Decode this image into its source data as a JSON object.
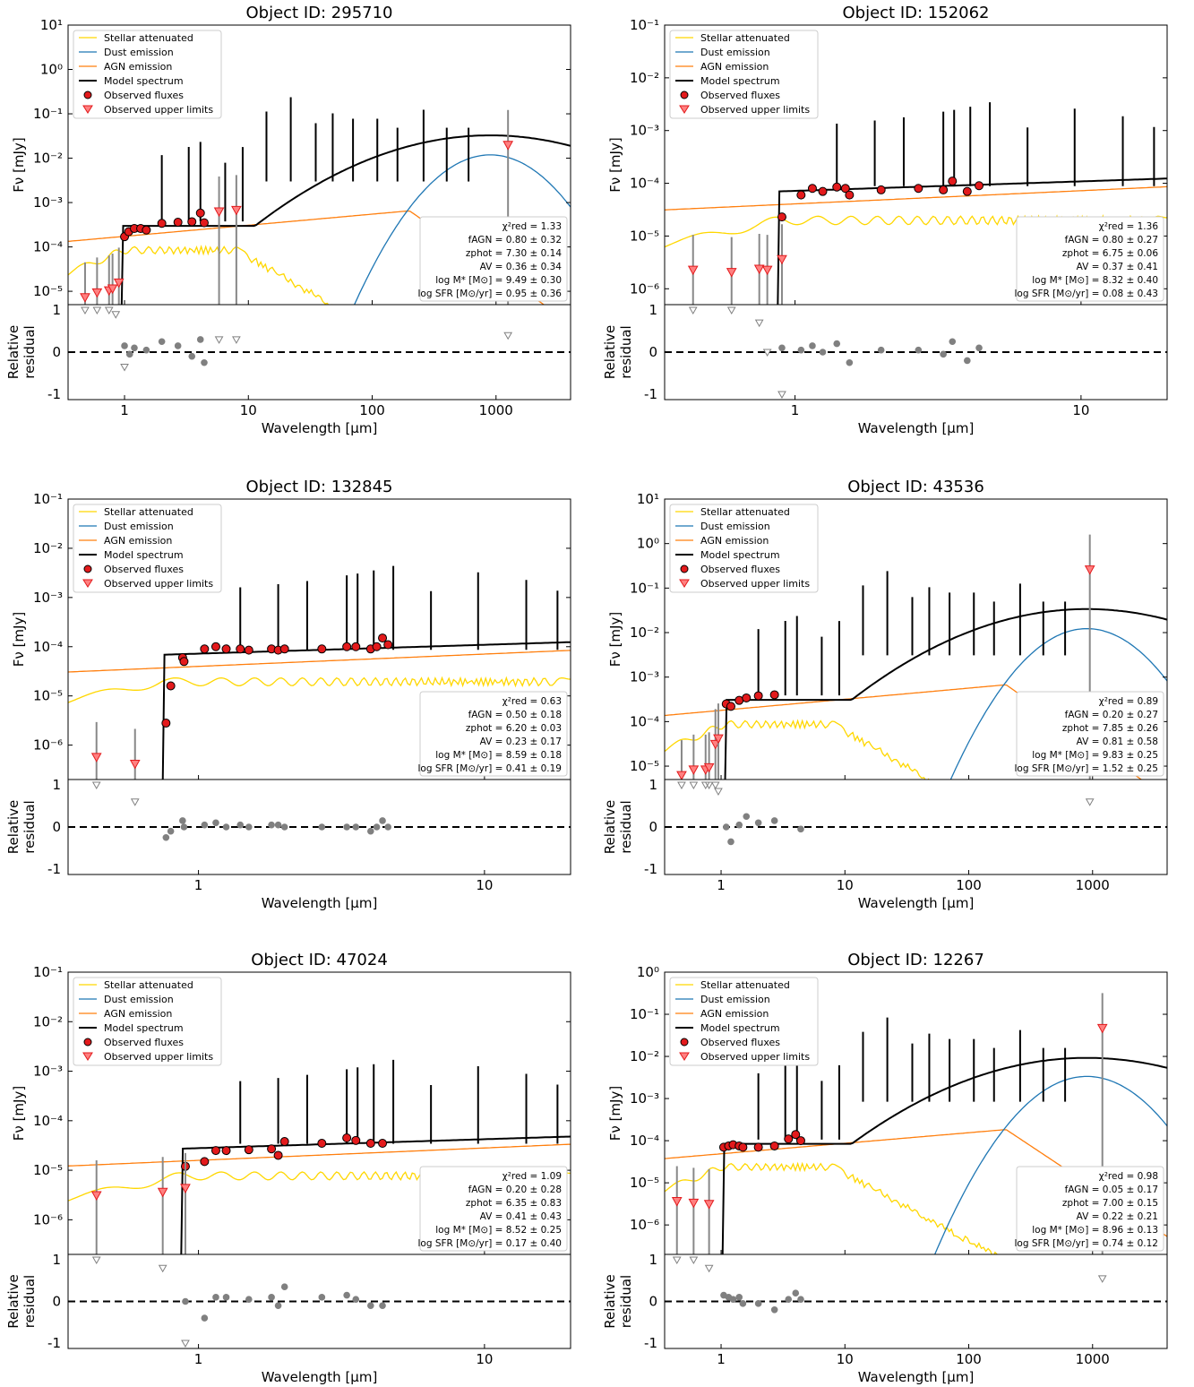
{
  "figure": {
    "legend": [
      "Stellar attenuated",
      "Dust emission",
      "AGN emission",
      "Model spectrum",
      "Observed fluxes",
      "Observed upper limits"
    ],
    "ylabel": "Fν [mJy]",
    "residual_ylabel": [
      "Relative",
      "residual"
    ],
    "xlabel": "Wavelength [μm]"
  },
  "colors": {
    "stellar": "#ffd700",
    "dust": "#1f77b4",
    "agn": "#ff7f0e",
    "model": "#000000",
    "observed": "#e31a1c",
    "residual": "#808080"
  },
  "chart_data": [
    {
      "type": "line",
      "title": "Object ID: 295710",
      "xscale": "log",
      "yscale": "log",
      "xlim": [
        0.35,
        4000
      ],
      "ylim": [
        5e-06,
        10
      ],
      "xticks": [
        "1",
        "10",
        "100",
        "1000"
      ],
      "yticks": [
        "10⁻⁵",
        "10⁻⁴",
        "10⁻³",
        "10⁻²",
        "10⁻¹",
        "10⁰",
        "10¹"
      ],
      "stats": [
        "χ²red = 1.33",
        "fAGN = 0.80 ± 0.32",
        "zphot = 7.30 ± 0.14",
        "AV = 0.36 ± 0.34",
        "log M* [M⊙] = 9.49 ± 0.30",
        "log SFR [M⊙/yr] = 0.95 ± 0.36"
      ],
      "observed": [
        [
          1.0,
          0.00017
        ],
        [
          1.08,
          0.00022
        ],
        [
          1.2,
          0.00026
        ],
        [
          1.35,
          0.00026
        ],
        [
          1.5,
          0.00024
        ],
        [
          2.0,
          0.00034
        ],
        [
          2.7,
          0.00036
        ],
        [
          3.5,
          0.00037
        ],
        [
          4.1,
          0.00058
        ],
        [
          4.4,
          0.00035
        ]
      ],
      "upper_limits": [
        [
          0.48,
          7e-06
        ],
        [
          0.6,
          9e-06
        ],
        [
          0.75,
          1e-05
        ],
        [
          0.8,
          1.1e-05
        ],
        [
          0.9,
          1.5e-05
        ],
        [
          5.8,
          0.0006
        ],
        [
          8.0,
          0.00065
        ],
        [
          1250,
          0.019
        ]
      ],
      "residual_points": [
        [
          1.0,
          0.15
        ],
        [
          1.1,
          -0.05
        ],
        [
          1.2,
          0.1
        ],
        [
          1.5,
          0.05
        ],
        [
          2.0,
          0.25
        ],
        [
          2.7,
          0.15
        ],
        [
          3.5,
          -0.1
        ],
        [
          4.1,
          0.3
        ],
        [
          4.4,
          -0.25
        ]
      ],
      "residual_limits": [
        [
          0.48,
          1.0
        ],
        [
          0.6,
          1.0
        ],
        [
          0.75,
          1.0
        ],
        [
          0.85,
          0.9
        ],
        [
          1.0,
          -0.35
        ],
        [
          5.8,
          0.3
        ],
        [
          8.0,
          0.3
        ],
        [
          1250,
          0.4
        ]
      ]
    },
    {
      "type": "line",
      "title": "Object ID: 152062",
      "xscale": "log",
      "yscale": "log",
      "xlim": [
        0.35,
        20
      ],
      "ylim": [
        5e-07,
        0.1
      ],
      "xticks": [
        "1",
        "10"
      ],
      "yticks": [
        "10⁻⁶",
        "10⁻⁵",
        "10⁻⁴",
        "10⁻³",
        "10⁻²",
        "10⁻¹"
      ],
      "stats": [
        "χ²red = 1.36",
        "fAGN = 0.80 ± 0.27",
        "zphot = 6.75 ± 0.06",
        "AV = 0.37 ± 0.41",
        "log M* [M⊙] = 8.32 ± 0.40",
        "log SFR [M⊙/yr] = 0.08 ± 0.43"
      ],
      "observed": [
        [
          0.9,
          2.3e-05
        ],
        [
          1.05,
          6e-05
        ],
        [
          1.15,
          8e-05
        ],
        [
          1.25,
          7e-05
        ],
        [
          1.4,
          8.5e-05
        ],
        [
          1.5,
          8e-05
        ],
        [
          1.55,
          6e-05
        ],
        [
          2.0,
          7.5e-05
        ],
        [
          2.7,
          8e-05
        ],
        [
          3.3,
          7.5e-05
        ],
        [
          3.55,
          0.00011
        ],
        [
          4.0,
          7e-05
        ],
        [
          4.4,
          9e-05
        ]
      ],
      "upper_limits": [
        [
          0.44,
          2.2e-06
        ],
        [
          0.6,
          2e-06
        ],
        [
          0.75,
          2.3e-06
        ],
        [
          0.8,
          2.2e-06
        ],
        [
          0.9,
          3.5e-06
        ]
      ],
      "residual_points": [
        [
          0.9,
          0.1
        ],
        [
          1.05,
          0.05
        ],
        [
          1.15,
          0.15
        ],
        [
          1.25,
          0.0
        ],
        [
          1.4,
          0.2
        ],
        [
          1.55,
          -0.25
        ],
        [
          2.0,
          0.05
        ],
        [
          2.7,
          0.05
        ],
        [
          3.3,
          -0.05
        ],
        [
          3.55,
          0.25
        ],
        [
          4.0,
          -0.2
        ],
        [
          4.4,
          0.1
        ]
      ],
      "residual_limits": [
        [
          0.44,
          1.0
        ],
        [
          0.6,
          1.0
        ],
        [
          0.75,
          0.7
        ],
        [
          0.8,
          0.0
        ],
        [
          0.9,
          -1.0
        ]
      ]
    },
    {
      "type": "line",
      "title": "Object ID: 132845",
      "xscale": "log",
      "yscale": "log",
      "xlim": [
        0.35,
        20
      ],
      "ylim": [
        2e-07,
        0.1
      ],
      "xticks": [
        "1",
        "10"
      ],
      "yticks": [
        "10⁻⁶",
        "10⁻⁵",
        "10⁻⁴",
        "10⁻³",
        "10⁻²",
        "10⁻¹"
      ],
      "stats": [
        "χ²red = 0.63",
        "fAGN = 0.50 ± 0.18",
        "zphot = 6.20 ± 0.03",
        "AV = 0.23 ± 0.17",
        "log M* [M⊙] = 8.59 ± 0.18",
        "log SFR [M⊙/yr] = 0.41 ± 0.19"
      ],
      "observed": [
        [
          0.77,
          2.8e-06
        ],
        [
          0.8,
          1.6e-05
        ],
        [
          0.88,
          6e-05
        ],
        [
          0.89,
          5e-05
        ],
        [
          1.05,
          9e-05
        ],
        [
          1.15,
          0.0001
        ],
        [
          1.25,
          9e-05
        ],
        [
          1.4,
          9e-05
        ],
        [
          1.5,
          8.5e-05
        ],
        [
          1.8,
          9e-05
        ],
        [
          1.9,
          8.5e-05
        ],
        [
          2.0,
          9e-05
        ],
        [
          2.7,
          9e-05
        ],
        [
          3.3,
          0.0001
        ],
        [
          3.55,
          0.0001
        ],
        [
          4.0,
          9e-05
        ],
        [
          4.2,
          0.0001
        ],
        [
          4.4,
          0.00015
        ],
        [
          4.6,
          0.00011
        ]
      ],
      "upper_limits": [
        [
          0.44,
          5.5e-07
        ],
        [
          0.6,
          4e-07
        ]
      ],
      "residual_points": [
        [
          0.77,
          -0.25
        ],
        [
          0.8,
          -0.1
        ],
        [
          0.88,
          0.15
        ],
        [
          0.89,
          0.0
        ],
        [
          1.05,
          0.05
        ],
        [
          1.15,
          0.1
        ],
        [
          1.25,
          0.0
        ],
        [
          1.4,
          0.05
        ],
        [
          1.5,
          0.0
        ],
        [
          1.8,
          0.05
        ],
        [
          1.9,
          0.05
        ],
        [
          2.0,
          0.0
        ],
        [
          2.7,
          0.0
        ],
        [
          3.3,
          0.0
        ],
        [
          3.55,
          0.0
        ],
        [
          4.0,
          -0.1
        ],
        [
          4.2,
          0.0
        ],
        [
          4.4,
          0.15
        ],
        [
          4.6,
          0.0
        ]
      ],
      "residual_limits": [
        [
          0.44,
          1.0
        ],
        [
          0.6,
          0.6
        ]
      ]
    },
    {
      "type": "line",
      "title": "Object ID: 43536",
      "xscale": "log",
      "yscale": "log",
      "xlim": [
        0.35,
        4000
      ],
      "ylim": [
        5e-06,
        10
      ],
      "xticks": [
        "1",
        "10",
        "100",
        "1000"
      ],
      "yticks": [
        "10⁻⁵",
        "10⁻⁴",
        "10⁻³",
        "10⁻²",
        "10⁻¹",
        "10⁰",
        "10¹"
      ],
      "stats": [
        "χ²red = 0.89",
        "fAGN = 0.20 ± 0.27",
        "zphot = 7.85 ± 0.26",
        "AV = 0.81 ± 0.58",
        "log M* [M⊙] = 9.83 ± 0.25",
        "log SFR [M⊙/yr] = 1.52 ± 0.25"
      ],
      "observed": [
        [
          1.1,
          0.00025
        ],
        [
          1.2,
          0.00022
        ],
        [
          1.4,
          0.0003
        ],
        [
          1.6,
          0.00034
        ],
        [
          2.0,
          0.00038
        ],
        [
          2.7,
          0.0004
        ]
      ],
      "upper_limits": [
        [
          0.48,
          6e-06
        ],
        [
          0.6,
          8e-06
        ],
        [
          0.75,
          8e-06
        ],
        [
          0.8,
          9e-06
        ],
        [
          0.9,
          3e-05
        ],
        [
          0.95,
          4e-05
        ],
        [
          950,
          0.25
        ]
      ],
      "residual_points": [
        [
          1.1,
          0.0
        ],
        [
          1.2,
          -0.35
        ],
        [
          1.4,
          0.05
        ],
        [
          1.6,
          0.25
        ],
        [
          2.0,
          0.1
        ],
        [
          2.7,
          0.15
        ],
        [
          4.4,
          -0.05
        ]
      ],
      "residual_limits": [
        [
          0.48,
          1.0
        ],
        [
          0.6,
          1.0
        ],
        [
          0.75,
          1.0
        ],
        [
          0.8,
          1.0
        ],
        [
          0.9,
          1.0
        ],
        [
          0.95,
          0.85
        ],
        [
          950,
          0.6
        ]
      ]
    },
    {
      "type": "line",
      "title": "Object ID: 47024",
      "xscale": "log",
      "yscale": "log",
      "xlim": [
        0.35,
        20
      ],
      "ylim": [
        2e-07,
        0.1
      ],
      "xticks": [
        "1",
        "10"
      ],
      "yticks": [
        "10⁻⁶",
        "10⁻⁵",
        "10⁻⁴",
        "10⁻³",
        "10⁻²",
        "10⁻¹"
      ],
      "stats": [
        "χ²red = 1.09",
        "fAGN = 0.20 ± 0.28",
        "zphot = 6.35 ± 0.83",
        "AV = 0.41 ± 0.43",
        "log M* [M⊙] = 8.52 ± 0.25",
        "log SFR [M⊙/yr] = 0.17 ± 0.40"
      ],
      "observed": [
        [
          0.9,
          1.2e-05
        ],
        [
          1.05,
          1.5e-05
        ],
        [
          1.15,
          2.5e-05
        ],
        [
          1.25,
          2.5e-05
        ],
        [
          1.5,
          2.6e-05
        ],
        [
          1.8,
          2.7e-05
        ],
        [
          1.9,
          2e-05
        ],
        [
          2.0,
          3.8e-05
        ],
        [
          2.7,
          3.5e-05
        ],
        [
          3.3,
          4.5e-05
        ],
        [
          3.55,
          4e-05
        ],
        [
          4.0,
          3.5e-05
        ],
        [
          4.4,
          3.5e-05
        ]
      ],
      "upper_limits": [
        [
          0.44,
          3e-06
        ],
        [
          0.75,
          3.5e-06
        ],
        [
          0.9,
          4.2e-06
        ]
      ],
      "residual_points": [
        [
          0.9,
          0.0
        ],
        [
          1.05,
          -0.4
        ],
        [
          1.15,
          0.1
        ],
        [
          1.25,
          0.1
        ],
        [
          1.5,
          0.05
        ],
        [
          1.8,
          0.1
        ],
        [
          1.9,
          -0.1
        ],
        [
          2.0,
          0.35
        ],
        [
          2.7,
          0.1
        ],
        [
          3.3,
          0.15
        ],
        [
          3.55,
          0.05
        ],
        [
          4.0,
          -0.1
        ],
        [
          4.4,
          -0.1
        ]
      ],
      "residual_limits": [
        [
          0.44,
          1.0
        ],
        [
          0.75,
          0.8
        ],
        [
          0.9,
          -1.0
        ]
      ]
    },
    {
      "type": "line",
      "title": "Object ID: 12267",
      "xscale": "log",
      "yscale": "log",
      "xlim": [
        0.35,
        4000
      ],
      "ylim": [
        2e-07,
        1
      ],
      "xticks": [
        "1",
        "10",
        "100",
        "1000"
      ],
      "yticks": [
        "10⁻⁶",
        "10⁻⁵",
        "10⁻⁴",
        "10⁻³",
        "10⁻²",
        "10⁻¹",
        "10⁰"
      ],
      "stats": [
        "χ²red = 0.98",
        "fAGN = 0.05 ± 0.17",
        "zphot = 7.00 ± 0.15",
        "AV = 0.22 ± 0.21",
        "log M* [M⊙] = 8.96 ± 0.13",
        "log SFR [M⊙/yr] = 0.74 ± 0.12"
      ],
      "observed": [
        [
          1.05,
          7e-05
        ],
        [
          1.15,
          7.5e-05
        ],
        [
          1.25,
          8e-05
        ],
        [
          1.4,
          7.5e-05
        ],
        [
          1.5,
          7e-05
        ],
        [
          2.0,
          7e-05
        ],
        [
          2.7,
          7.5e-05
        ],
        [
          3.5,
          0.00011
        ],
        [
          4.0,
          0.00014
        ],
        [
          4.4,
          0.0001
        ]
      ],
      "upper_limits": [
        [
          0.44,
          3.5e-06
        ],
        [
          0.6,
          3.2e-06
        ],
        [
          0.8,
          3e-06
        ],
        [
          1200,
          0.045
        ]
      ],
      "residual_points": [
        [
          1.05,
          0.15
        ],
        [
          1.15,
          0.1
        ],
        [
          1.25,
          0.05
        ],
        [
          1.4,
          0.1
        ],
        [
          1.5,
          -0.05
        ],
        [
          2.0,
          -0.05
        ],
        [
          2.7,
          -0.2
        ],
        [
          3.5,
          0.05
        ],
        [
          4.0,
          0.2
        ],
        [
          4.4,
          0.05
        ]
      ],
      "residual_limits": [
        [
          0.44,
          1.0
        ],
        [
          0.6,
          1.0
        ],
        [
          0.8,
          0.8
        ],
        [
          1200,
          0.55
        ]
      ]
    }
  ]
}
